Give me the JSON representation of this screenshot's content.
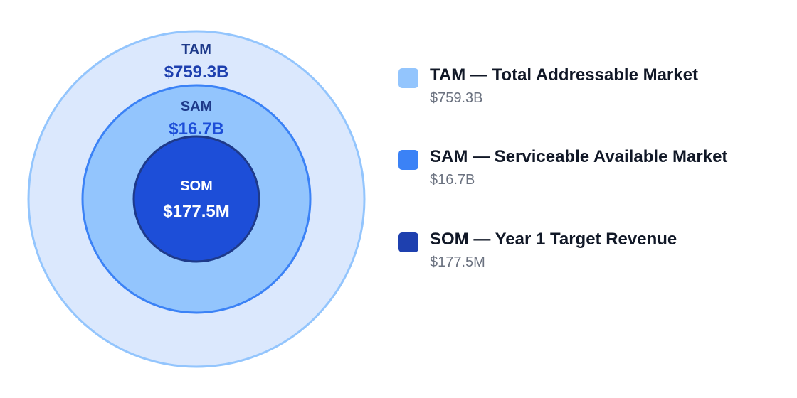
{
  "tiers": [
    {
      "key": "tam",
      "short": "TAM",
      "value": "$759.3B",
      "legend_title": "TAM — Total Addressable Market",
      "fill": "#dbe8fd",
      "stroke": "#93c5fd",
      "label_color": "#1e3a8a",
      "value_color": "#1e40af",
      "swatch": "#93c5fd"
    },
    {
      "key": "sam",
      "short": "SAM",
      "value": "$16.7B",
      "legend_title": "SAM — Serviceable Available Market",
      "fill": "#93c5fd",
      "stroke": "#3b82f6",
      "label_color": "#1e3a8a",
      "value_color": "#1d4ed8",
      "swatch": "#3b82f6"
    },
    {
      "key": "som",
      "short": "SOM",
      "value": "$177.5M",
      "legend_title": "SOM — Year 1 Target Revenue",
      "fill": "#1d4ed8",
      "stroke": "#1e3a8a",
      "label_color": "#ffffff",
      "value_color": "#ffffff",
      "swatch": "#1e40af"
    }
  ]
}
